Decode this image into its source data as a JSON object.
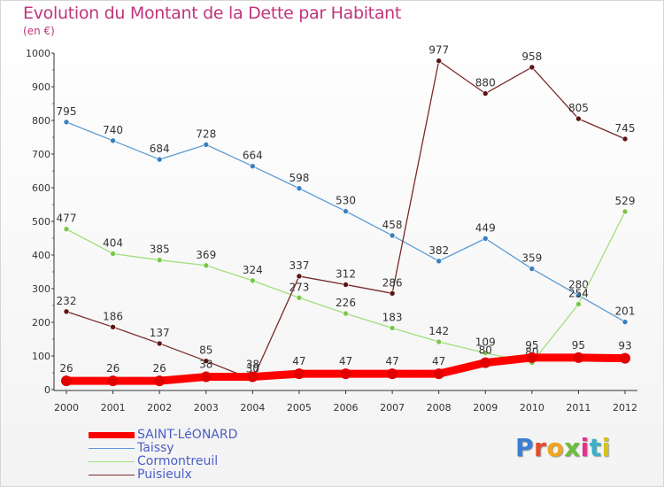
{
  "chart_data": {
    "type": "line",
    "title": "Evolution du Montant de la Dette par Habitant",
    "unit": "(en €)",
    "categories": [
      "2000",
      "2001",
      "2002",
      "2003",
      "2004",
      "2005",
      "2006",
      "2007",
      "2008",
      "2009",
      "2010",
      "2011",
      "2012"
    ],
    "ylim": [
      0,
      1000
    ],
    "yticks": [
      0,
      100,
      200,
      300,
      400,
      500,
      600,
      700,
      800,
      900,
      1000
    ],
    "grid": false,
    "legend_position": "bottom",
    "series": [
      {
        "name": "Taissy",
        "color": "#5b9bd5",
        "point_color": "#3a7fc0",
        "values": [
          795,
          740,
          684,
          728,
          664,
          598,
          530,
          458,
          382,
          449,
          359,
          280,
          201
        ],
        "labels": [
          "795",
          "740",
          "684",
          "728",
          "664",
          "598",
          "530",
          "458",
          "382",
          "449",
          "359",
          "280",
          "201"
        ]
      },
      {
        "name": "Cormontreuil",
        "color": "#9ee07a",
        "point_color": "#7bc64a",
        "values": [
          477,
          404,
          385,
          369,
          324,
          273,
          226,
          183,
          142,
          109,
          80,
          254,
          529
        ],
        "labels": [
          "477",
          "404",
          "385",
          "369",
          "324",
          "273",
          "226",
          "183",
          "142",
          "109",
          "80",
          "254",
          "529"
        ]
      },
      {
        "name": "Puisieulx",
        "color": "#7a2a2a",
        "point_color": "#5a1414",
        "values": [
          232,
          186,
          137,
          85,
          30,
          337,
          312,
          286,
          977,
          880,
          958,
          805,
          745
        ],
        "labels": [
          "232",
          "186",
          "137",
          "85",
          "30",
          "337",
          "312",
          "286",
          "977",
          "880",
          "958",
          "805",
          "745"
        ]
      },
      {
        "name": "SAINT-LéONARD",
        "color": "#ff0000",
        "point_color": "#e00000",
        "values": [
          26,
          26,
          26,
          38,
          38,
          47,
          47,
          47,
          47,
          80,
          95,
          95,
          93
        ],
        "labels": [
          "26",
          "26",
          "26",
          "38",
          "38",
          "47",
          "47",
          "47",
          "47",
          "80",
          "95",
          "95",
          "93"
        ]
      }
    ]
  },
  "legend": [
    {
      "label": "SAINT-LéONARD",
      "color": "#ff0000",
      "thick": true
    },
    {
      "label": "Taissy",
      "color": "#5b9bd5",
      "thick": false
    },
    {
      "label": "Cormontreuil",
      "color": "#9ee07a",
      "thick": false
    },
    {
      "label": "Puisieulx",
      "color": "#7a2a2a",
      "thick": false
    }
  ],
  "logo": {
    "letters": [
      "P",
      "r",
      "o",
      "x",
      "i",
      "t",
      "i"
    ],
    "colors": [
      "#3b7fd4",
      "#e64b2a",
      "#f2a51d",
      "#6bbf3a",
      "#e0358a",
      "#3bb0c9",
      "#d6c21c"
    ]
  }
}
